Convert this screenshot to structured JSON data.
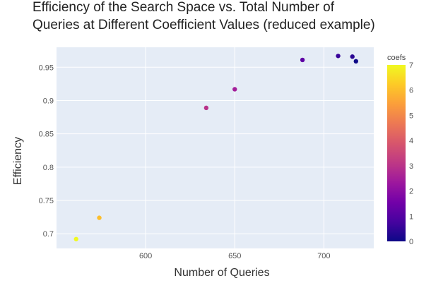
{
  "chart_data": {
    "type": "scatter",
    "title_lines": [
      "Efficiency of the Search Space vs. Total Number of",
      "Queries at Different Coefficient Values (reduced example)"
    ],
    "xlabel": "Number of Queries",
    "ylabel": "Efficiency",
    "xlim": [
      550,
      728
    ],
    "ylim": [
      0.678,
      0.98
    ],
    "xticks": [
      600,
      650,
      700
    ],
    "yticks": [
      0.7,
      0.75,
      0.8,
      0.85,
      0.9,
      0.95
    ],
    "ytick_labels": [
      "0.7",
      "0.75",
      "0.8",
      "0.85",
      "0.9",
      "0.95"
    ],
    "grid": true,
    "plot_background": "#e5ecf6",
    "colorscale": "plasma",
    "colorbar": {
      "title": "coefs",
      "range": [
        0,
        7
      ],
      "ticks": [
        0,
        1,
        2,
        3,
        4,
        5,
        6,
        7
      ]
    },
    "points": [
      {
        "x": 561,
        "y": 0.692,
        "coef": 7
      },
      {
        "x": 574,
        "y": 0.724,
        "coef": 6
      },
      {
        "x": 634,
        "y": 0.889,
        "coef": 3
      },
      {
        "x": 650,
        "y": 0.917,
        "coef": 2.5
      },
      {
        "x": 688,
        "y": 0.961,
        "coef": 1.2
      },
      {
        "x": 708,
        "y": 0.967,
        "coef": 0.6
      },
      {
        "x": 716,
        "y": 0.966,
        "coef": 0.4
      },
      {
        "x": 718,
        "y": 0.959,
        "coef": 0
      }
    ]
  }
}
